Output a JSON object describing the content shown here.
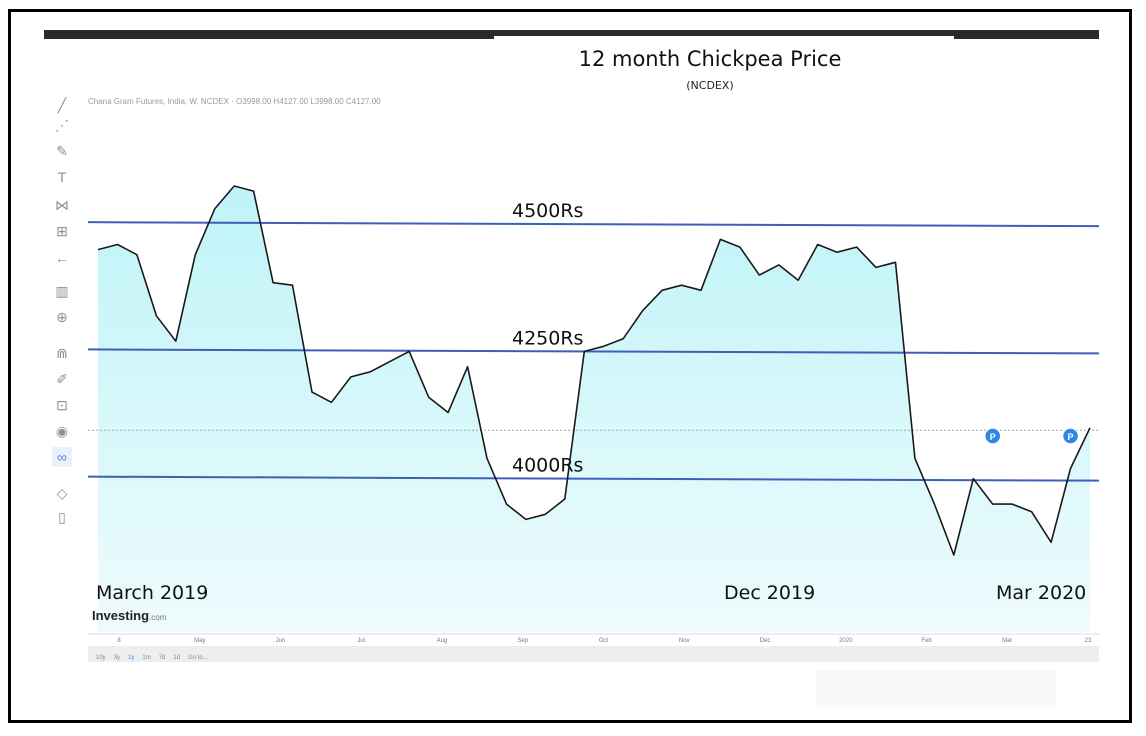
{
  "chart_data": {
    "type": "area",
    "title": "12 month Chickpea Price",
    "subtitle": "(NCDEX)",
    "legend_text": "Chana Gram Futures, India, W, NCDEX · O3998.00 H4127.00 L3998.00 C4127.00",
    "x_tick_labels": [
      "8",
      "May",
      "Jun",
      "Jul",
      "Aug",
      "Sep",
      "Oct",
      "Nov",
      "Dec",
      "2020",
      "Feb",
      "Mar",
      "23"
    ],
    "series": [
      {
        "values": [
          4450,
          4460,
          4440,
          4320,
          4270,
          4440,
          4530,
          4575,
          4565,
          4385,
          4380,
          4170,
          4150,
          4200,
          4210,
          4230,
          4250,
          4160,
          4130,
          4220,
          4040,
          3950,
          3920,
          3930,
          3960,
          4250,
          4260,
          4275,
          4330,
          4370,
          4380,
          4370,
          4470,
          4455,
          4400,
          4420,
          4390,
          4460,
          4445,
          4455,
          4415,
          4425,
          4040,
          3950,
          3850,
          4000,
          3950,
          3950,
          3935,
          3875,
          4020,
          4100
        ]
      }
    ],
    "reference_lines": [
      {
        "value": 4500,
        "label": "4500Rs"
      },
      {
        "value": 4250,
        "label": "4250Rs"
      },
      {
        "value": 4000,
        "label": "4000Rs"
      }
    ],
    "current_price_line": 4095,
    "annotations": [
      {
        "label": "March 2019"
      },
      {
        "label": "Dec 2019"
      },
      {
        "label": "Mar 2020"
      }
    ],
    "event_markers": [
      {
        "icon": "P",
        "index": 46
      },
      {
        "icon": "P",
        "index": 50
      }
    ],
    "ylim": [
      3800,
      4620
    ],
    "watermark_brand": "Investing",
    "watermark_suffix": ".com",
    "colors": {
      "line": "#1a1a1a",
      "area_top": "#bff4f8",
      "area_bottom": "#eefbfd",
      "reference_line": "#3d5fb8",
      "marker": "#2f86e6"
    }
  },
  "toolbar": {
    "tools": [
      "trend-line-icon",
      "pitchfork-icon",
      "brush-icon",
      "text-icon",
      "pattern-icon",
      "measure-icon",
      "back-arrow-icon",
      "indicators-icon",
      "zoom-icon",
      "magnet-icon",
      "lock-drawing-icon",
      "lock-icon",
      "eye-icon",
      "link-icon",
      "layers-icon",
      "trash-icon"
    ]
  },
  "periods": [
    "10y",
    "3y",
    "1y",
    "1m",
    "7d",
    "1d",
    "Go to..."
  ]
}
